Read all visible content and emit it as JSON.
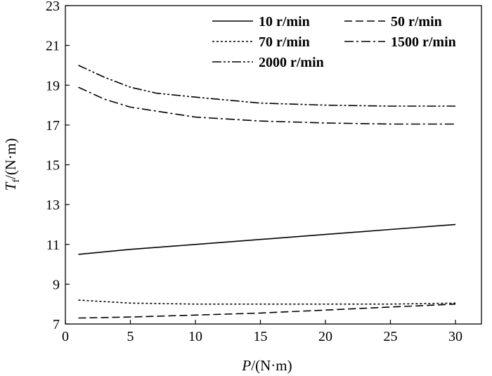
{
  "chart_data": {
    "type": "line",
    "xlabel": {
      "italic": "P",
      "rest": "/(N·m)"
    },
    "ylabel": {
      "italic": "T",
      "sub": "f",
      "rest": "/(N·m)"
    },
    "xlim": [
      0,
      32
    ],
    "ylim": [
      7,
      23
    ],
    "xticks": [
      0,
      5,
      10,
      15,
      20,
      25,
      30
    ],
    "yticks": [
      7,
      9,
      11,
      13,
      15,
      17,
      19,
      21,
      23
    ],
    "grid": false,
    "legend_position": "top-right",
    "series": [
      {
        "name": "10 r/min",
        "style": "solid",
        "x": [
          1,
          5,
          10,
          15,
          20,
          25,
          30
        ],
        "y": [
          10.5,
          10.75,
          11.0,
          11.25,
          11.5,
          11.75,
          12.0
        ]
      },
      {
        "name": "50 r/min",
        "style": "dashed",
        "x": [
          1,
          5,
          10,
          15,
          20,
          25,
          30
        ],
        "y": [
          7.3,
          7.35,
          7.45,
          7.55,
          7.7,
          7.85,
          8.0
        ]
      },
      {
        "name": "70 r/min",
        "style": "dotted",
        "x": [
          1,
          5,
          10,
          15,
          20,
          25,
          30
        ],
        "y": [
          8.2,
          8.05,
          8.0,
          8.0,
          8.0,
          8.0,
          8.05
        ]
      },
      {
        "name": "1500 r/min",
        "style": "dashdot",
        "x": [
          1,
          3,
          5,
          7,
          10,
          15,
          20,
          25,
          30
        ],
        "y": [
          18.9,
          18.3,
          17.9,
          17.7,
          17.4,
          17.2,
          17.1,
          17.05,
          17.05
        ]
      },
      {
        "name": "2000 r/min",
        "style": "dashdotdot",
        "x": [
          1,
          3,
          5,
          7,
          10,
          15,
          20,
          25,
          30
        ],
        "y": [
          20.0,
          19.4,
          18.9,
          18.6,
          18.4,
          18.1,
          18.0,
          17.95,
          17.95
        ]
      }
    ]
  }
}
